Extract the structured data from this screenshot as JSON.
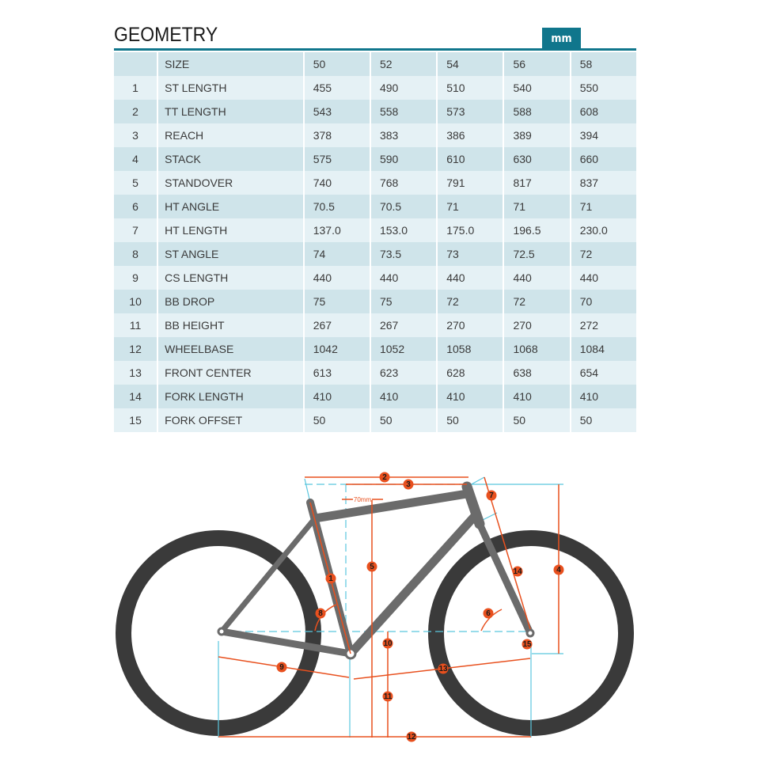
{
  "header": {
    "title": "GEOMETRY",
    "unit": "mm"
  },
  "table": {
    "columns": [
      "",
      "SIZE",
      "50",
      "52",
      "54",
      "56",
      "58"
    ],
    "rows": [
      [
        "1",
        "ST LENGTH",
        "455",
        "490",
        "510",
        "540",
        "550"
      ],
      [
        "2",
        "TT LENGTH",
        "543",
        "558",
        "573",
        "588",
        "608"
      ],
      [
        "3",
        "REACH",
        "378",
        "383",
        "386",
        "389",
        "394"
      ],
      [
        "4",
        "STACK",
        "575",
        "590",
        "610",
        "630",
        "660"
      ],
      [
        "5",
        "STANDOVER",
        "740",
        "768",
        "791",
        "817",
        "837"
      ],
      [
        "6",
        "HT ANGLE",
        "70.5",
        "70.5",
        "71",
        "71",
        "71"
      ],
      [
        "7",
        "HT LENGTH",
        "137.0",
        "153.0",
        "175.0",
        "196.5",
        "230.0"
      ],
      [
        "8",
        "ST ANGLE",
        "74",
        "73.5",
        "73",
        "72.5",
        "72"
      ],
      [
        "9",
        "CS LENGTH",
        "440",
        "440",
        "440",
        "440",
        "440"
      ],
      [
        "10",
        "BB DROP",
        "75",
        "75",
        "72",
        "72",
        "70"
      ],
      [
        "11",
        "BB HEIGHT",
        "267",
        "267",
        "270",
        "270",
        "272"
      ],
      [
        "12",
        "WHEELBASE",
        "1042",
        "1052",
        "1058",
        "1068",
        "1084"
      ],
      [
        "13",
        "FRONT CENTER",
        "613",
        "623",
        "628",
        "638",
        "654"
      ],
      [
        "14",
        "FORK LENGTH",
        "410",
        "410",
        "410",
        "410",
        "410"
      ],
      [
        "15",
        "FORK OFFSET",
        "50",
        "50",
        "50",
        "50",
        "50"
      ]
    ]
  },
  "diagram": {
    "offset_note": "70mm",
    "markers": [
      "1",
      "2",
      "3",
      "4",
      "5",
      "6",
      "7",
      "8",
      "9",
      "10",
      "11",
      "12",
      "13",
      "14",
      "15"
    ],
    "colors": {
      "accent": "#10768c",
      "dimension": "#e8501e",
      "guide": "#5bc6de",
      "frame": "#6b6b6b",
      "tire": "#3a3a3a"
    }
  }
}
